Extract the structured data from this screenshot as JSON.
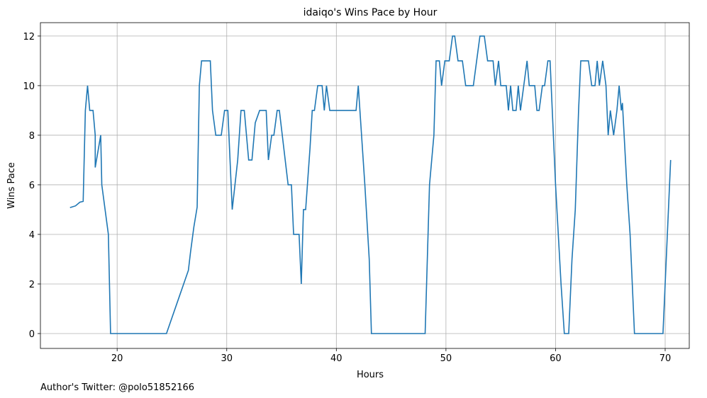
{
  "chart_data": {
    "type": "line",
    "title": "idaiqo's Wins Pace by Hour",
    "xlabel": "Hours",
    "ylabel": "Wins Pace",
    "footer": "Author's Twitter: @polo51852166",
    "xlim": [
      13.0,
      72.2
    ],
    "ylim": [
      -0.6,
      12.54
    ],
    "xticks": [
      20,
      30,
      40,
      50,
      60,
      70
    ],
    "yticks": [
      0,
      2,
      4,
      6,
      8,
      10,
      12
    ],
    "grid": true,
    "series": [
      {
        "color": "#1f77b4",
        "x": [
          15.7,
          16.2,
          16.6,
          16.9,
          17.1,
          17.3,
          17.5,
          17.8,
          18.0,
          18.0,
          18.5,
          18.6,
          19.2,
          19.4,
          24.5,
          26.5,
          26.7,
          27.0,
          27.3,
          27.5,
          27.7,
          28.5,
          28.7,
          29.0,
          29.5,
          29.8,
          30.1,
          30.5,
          31.0,
          31.3,
          31.6,
          32.0,
          32.3,
          32.6,
          33.0,
          33.6,
          33.8,
          34.1,
          34.3,
          34.6,
          34.8,
          35.6,
          35.9,
          36.1,
          36.6,
          36.8,
          37.0,
          37.2,
          37.6,
          37.8,
          38.0,
          38.3,
          38.7,
          38.9,
          39.1,
          39.4,
          41.8,
          42.0,
          42.6,
          43.0,
          43.2,
          48.1,
          48.5,
          48.9,
          49.1,
          49.4,
          49.6,
          49.9,
          50.3,
          50.6,
          50.8,
          51.1,
          51.5,
          51.8,
          52.5,
          52.8,
          53.1,
          53.5,
          53.8,
          54.3,
          54.5,
          54.8,
          55.0,
          55.5,
          55.7,
          55.9,
          56.1,
          56.4,
          56.6,
          56.8,
          57.1,
          57.4,
          57.6,
          58.1,
          58.3,
          58.5,
          58.8,
          59.0,
          59.3,
          59.5,
          60.0,
          60.5,
          60.8,
          61.2,
          61.5,
          61.8,
          62.1,
          62.3,
          63.0,
          63.3,
          63.6,
          63.8,
          64.0,
          64.3,
          64.6,
          64.8,
          65.0,
          65.3,
          65.6,
          65.8,
          66.0,
          66.1,
          66.5,
          66.8,
          67.0,
          67.2,
          69.8,
          70.0,
          70.3,
          70.5
        ],
        "values": [
          5.08,
          5.15,
          5.3,
          5.33,
          9,
          10,
          9,
          9,
          8,
          6.7,
          8,
          6,
          4,
          0,
          0,
          2.55,
          3.3,
          4.3,
          5.1,
          10,
          11,
          11,
          9,
          8,
          8,
          9,
          9,
          5,
          7,
          9,
          9,
          7,
          7,
          8.5,
          9,
          9,
          7,
          8,
          8,
          9,
          9,
          6,
          6,
          4,
          4,
          2,
          5,
          5,
          7.5,
          9,
          9,
          10,
          10,
          9,
          10,
          9,
          9,
          10,
          6,
          3,
          0,
          0,
          6,
          8,
          11,
          11,
          10,
          11,
          11,
          12,
          12,
          11,
          11,
          10,
          10,
          11,
          12,
          12,
          11,
          11,
          10,
          11,
          10,
          10,
          9,
          10,
          9,
          9,
          10,
          9,
          10,
          11,
          10,
          10,
          9,
          9,
          10,
          10,
          11,
          11,
          6,
          2,
          0,
          0,
          3,
          5,
          9,
          11,
          11,
          10,
          10,
          11,
          10,
          11,
          10,
          8,
          9,
          8,
          9,
          10,
          9,
          9.3,
          6,
          4,
          2,
          0,
          0,
          2,
          5,
          7
        ]
      }
    ]
  }
}
